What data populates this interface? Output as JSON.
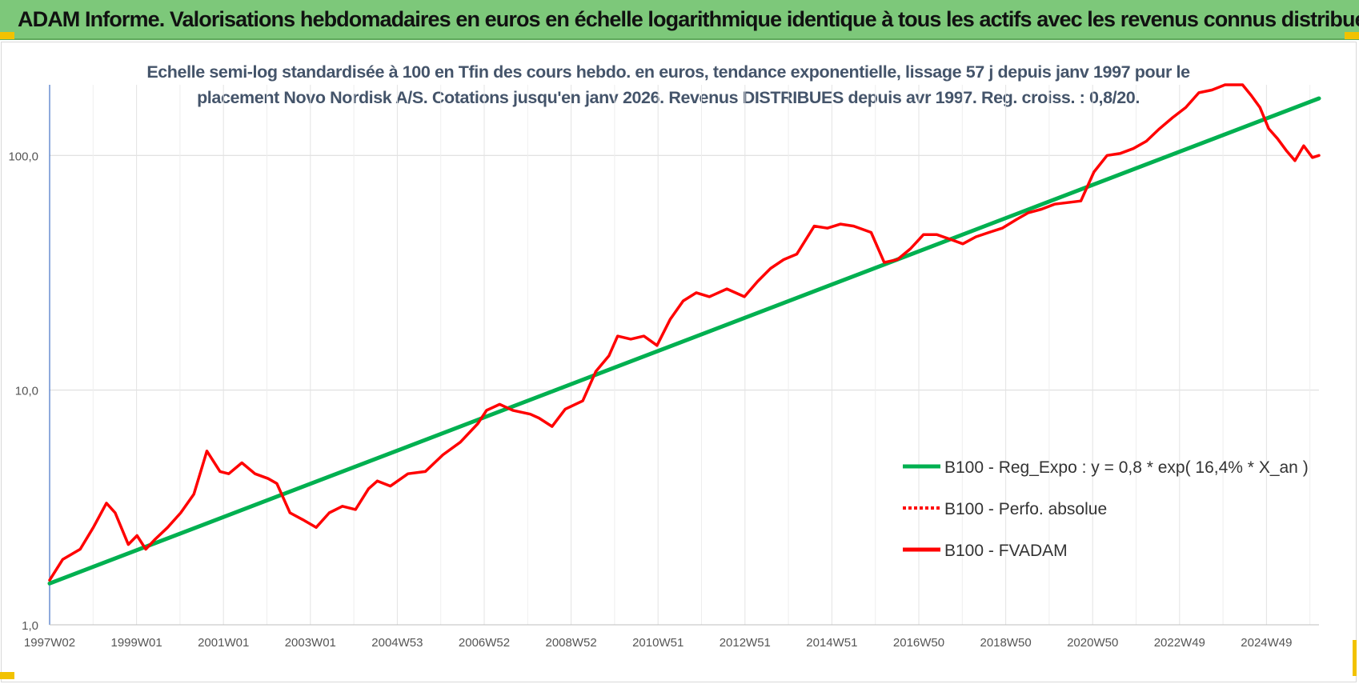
{
  "banner": {
    "title": "ADAM Informe. Valorisations hebdomadaires en euros en échelle logarithmique identique à tous les actifs avec les revenus connus distribués"
  },
  "colors": {
    "banner_bg": "#7dc87a",
    "regression": "#00b050",
    "fvadam": "#ff0000",
    "perf_absolue": "#ff0000",
    "title_text": "#44546a",
    "corner_accent": "#f2c200"
  },
  "chart_data": {
    "type": "line",
    "title_line1": "Echelle semi-log standardisée à 100 en Tfin des cours hebdo. en euros, tendance exponentielle, lissage 57 j depuis janv 1997 pour le",
    "title_line2": "placement Novo Nordisk A/S. Cotations jusqu'en janv 2026. Revenus DISTRIBUES depuis avr 1997. Reg. croiss. : 0,8/20.",
    "y_scale": "log",
    "ylim": [
      1,
      200
    ],
    "y_ticks": [
      {
        "value": 1,
        "label": "1,0"
      },
      {
        "value": 10,
        "label": "10,0"
      },
      {
        "value": 100,
        "label": "100,0"
      }
    ],
    "x_ticks": [
      "1997W02",
      "1999W01",
      "2001W01",
      "2003W01",
      "2004W53",
      "2006W52",
      "2008W52",
      "2010W51",
      "2012W51",
      "2014W51",
      "2016W50",
      "2018W50",
      "2020W50",
      "2022W49",
      "2024W49"
    ],
    "x_range": [
      1997.0,
      2026.05
    ],
    "grid": "vertical and horizontal",
    "legend_position": "bottom-right",
    "series": [
      {
        "name": "B100 - Reg_Expo : y = 0,8 * exp( 16,4% *  X_an )",
        "style": "solid",
        "color": "#00b050",
        "x": [
          1997.0,
          2026.05
        ],
        "values": [
          1.5,
          175
        ]
      },
      {
        "name": "B100 - Perfo. absolue",
        "style": "dotted",
        "color": "#ff0000",
        "x": [],
        "values": []
      },
      {
        "name": "B100 - FVADAM",
        "style": "solid",
        "color": "#ff0000",
        "x": [
          1997.0,
          1997.3,
          1997.7,
          1998.0,
          1998.3,
          1998.5,
          1998.8,
          1999.0,
          1999.2,
          1999.4,
          1999.7,
          2000.0,
          2000.3,
          2000.6,
          2000.9,
          2001.1,
          2001.4,
          2001.7,
          2002.0,
          2002.2,
          2002.5,
          2002.8,
          2003.1,
          2003.4,
          2003.7,
          2004.0,
          2004.3,
          2004.5,
          2004.8,
          2005.2,
          2005.6,
          2006.0,
          2006.4,
          2006.8,
          2007.0,
          2007.3,
          2007.6,
          2008.0,
          2008.2,
          2008.5,
          2008.8,
          2009.2,
          2009.5,
          2009.8,
          2010.0,
          2010.3,
          2010.6,
          2010.9,
          2011.2,
          2011.5,
          2011.8,
          2012.1,
          2012.5,
          2012.9,
          2013.2,
          2013.5,
          2013.8,
          2014.1,
          2014.5,
          2014.8,
          2015.1,
          2015.4,
          2015.8,
          2016.1,
          2016.4,
          2016.7,
          2017.0,
          2017.3,
          2017.6,
          2017.9,
          2018.2,
          2018.5,
          2018.8,
          2019.1,
          2019.4,
          2019.7,
          2020.0,
          2020.3,
          2020.6,
          2020.9,
          2021.2,
          2021.5,
          2021.8,
          2022.1,
          2022.4,
          2022.7,
          2023.0,
          2023.3,
          2023.6,
          2023.9,
          2024.1,
          2024.3,
          2024.5,
          2024.7,
          2024.9,
          2025.1,
          2025.3,
          2025.5,
          2025.7,
          2025.9,
          2026.05
        ],
        "values": [
          1.55,
          1.9,
          2.1,
          2.6,
          3.3,
          3.0,
          2.2,
          2.4,
          2.1,
          2.3,
          2.6,
          3.0,
          3.6,
          5.5,
          4.5,
          4.4,
          4.9,
          4.4,
          4.2,
          4.0,
          3.0,
          2.8,
          2.6,
          3.0,
          3.2,
          3.1,
          3.8,
          4.1,
          3.9,
          4.4,
          4.5,
          5.3,
          6.0,
          7.2,
          8.2,
          8.7,
          8.2,
          7.9,
          7.6,
          7.0,
          8.3,
          9.0,
          12.0,
          14.0,
          17.0,
          16.5,
          17.0,
          15.5,
          20.0,
          24.0,
          26.0,
          25.0,
          27.0,
          25.0,
          29.0,
          33.0,
          36.0,
          38.0,
          50.0,
          49.0,
          51.0,
          50.0,
          47.0,
          35.0,
          36.0,
          40.0,
          46.0,
          46.0,
          44.0,
          42.0,
          45.0,
          47.0,
          49.0,
          53.0,
          57.0,
          59.0,
          62.0,
          63.0,
          64.0,
          85.0,
          100.0,
          102.0,
          107.0,
          115.0,
          130.0,
          145.0,
          160.0,
          185.0,
          190.0,
          215.0,
          240.0,
          205.0,
          180.0,
          160.0,
          130.0,
          118.0,
          105.0,
          95.0,
          110.0,
          98.0,
          100.0
        ]
      }
    ]
  }
}
